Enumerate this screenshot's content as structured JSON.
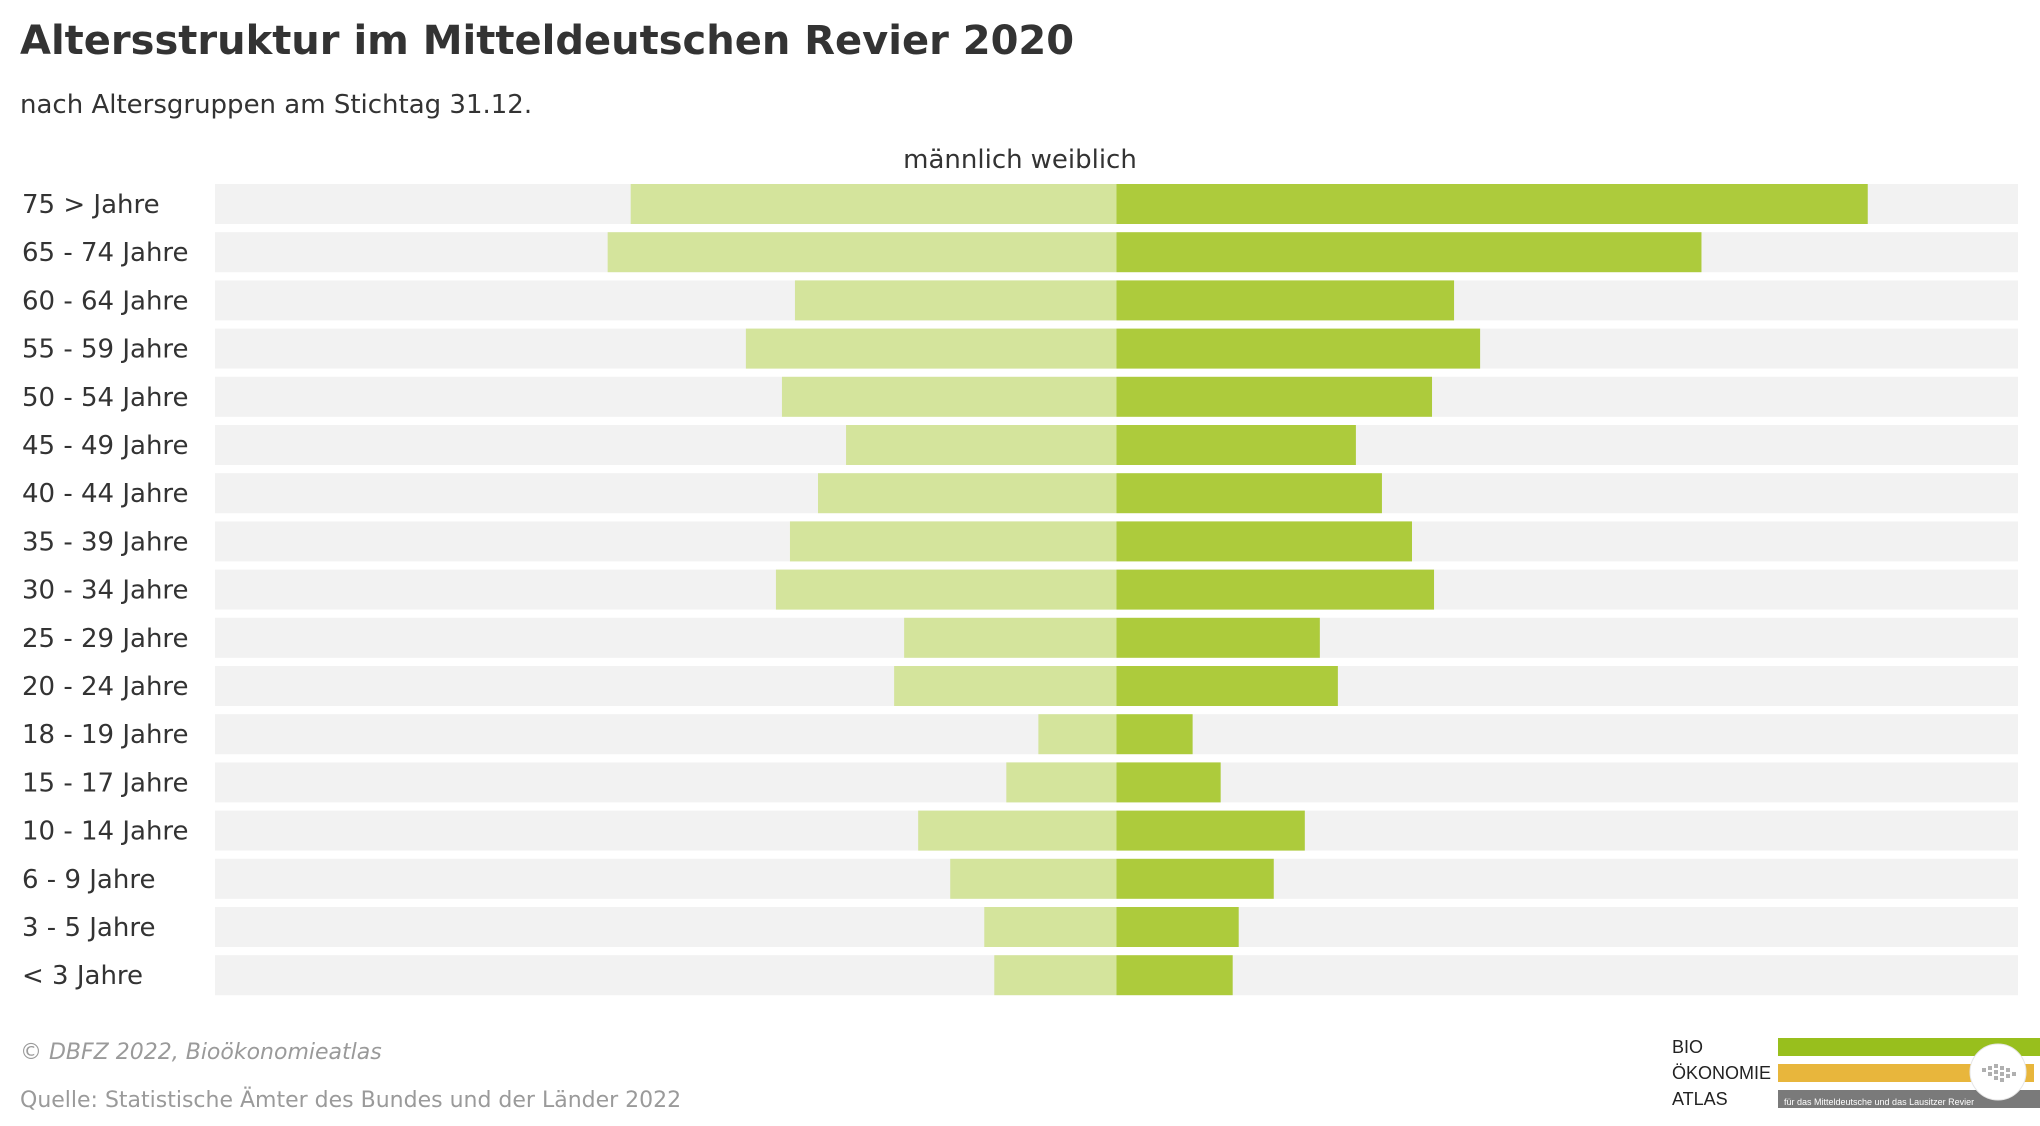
{
  "title": "Altersstruktur im Mitteldeutschen Revier 2020",
  "subtitle": "nach Altersgruppen am Stichtag 31.12.",
  "legend": {
    "male": "männlich",
    "female": "weiblich"
  },
  "colors": {
    "male": "#d4e49c",
    "female": "#adcb3c",
    "track": "#f2f2f2"
  },
  "chart_data": {
    "type": "bar",
    "orientation": "horizontal",
    "layout": "diverging",
    "categories": [
      "75 > Jahre",
      "65 - 74 Jahre",
      "60 - 64 Jahre",
      "55 - 59 Jahre",
      "50 - 54 Jahre",
      "45 - 49 Jahre",
      "40 - 44 Jahre",
      "35 - 39 Jahre",
      "30 - 34 Jahre",
      "25 - 29 Jahre",
      "20 - 24 Jahre",
      "18 - 19 Jahre",
      "15 - 17 Jahre",
      "10 - 14 Jahre",
      "6 - 9 Jahre",
      "3 - 5 Jahre",
      "< 3 Jahre"
    ],
    "series": [
      {
        "name": "männlich",
        "values": [
          485,
          508,
          321,
          370,
          334,
          270,
          298,
          326,
          340,
          212,
          222,
          78,
          110,
          198,
          166,
          132,
          122
        ]
      },
      {
        "name": "weiblich",
        "values": [
          750,
          584,
          337,
          363,
          315,
          239,
          265,
          295,
          317,
          203,
          221,
          76,
          104,
          188,
          157,
          122,
          116
        ]
      }
    ],
    "xlim": [
      -900,
      900
    ],
    "grid": false,
    "legend_position": "top-center"
  },
  "footer": {
    "credit": "© DBFZ 2022, Bioökonomieatlas",
    "source": "Quelle: Statistische Ämter des Bundes und der Länder 2022"
  },
  "logo": {
    "line1": "BIO",
    "line2": "ÖKONOMIE",
    "line3": "ATLAS",
    "tagline": "für das Mitteldeutsche und das Lausitzer Revier",
    "colors": [
      "#98bf1d",
      "#e8b63c",
      "#7a7a7a"
    ]
  }
}
